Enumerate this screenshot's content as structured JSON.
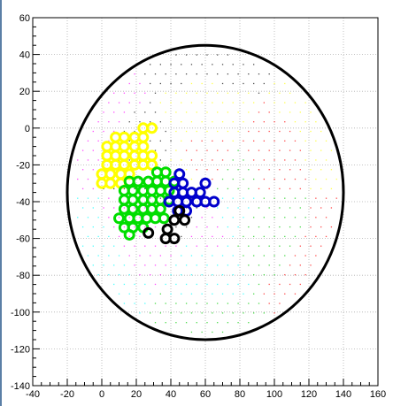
{
  "chart_data": {
    "type": "scatter",
    "title": "",
    "xlabel": "",
    "ylabel": "",
    "xlim": [
      -40,
      160
    ],
    "ylim": [
      -140,
      60
    ],
    "xticks": [
      -40,
      -20,
      0,
      20,
      40,
      60,
      80,
      100,
      120,
      140,
      160
    ],
    "yticks": [
      60,
      40,
      20,
      0,
      -20,
      -40,
      -60,
      -80,
      -100,
      -120,
      -140
    ],
    "grid": true,
    "circle": {
      "cx": 60,
      "cy": -35,
      "r": 80,
      "color": "#000000"
    },
    "background_dots": {
      "spacing": 6,
      "colors": [
        "#000000",
        "#ff00ff",
        "#00ffff",
        "#00cc00",
        "#ff0000",
        "#ffff00"
      ]
    },
    "series": [
      {
        "color": "#ffff00",
        "points": [
          [
            24,
            0
          ],
          [
            29,
            0
          ],
          [
            8,
            -5
          ],
          [
            13,
            -5
          ],
          [
            19,
            -5
          ],
          [
            24,
            -5
          ],
          [
            3,
            -10
          ],
          [
            8,
            -10
          ],
          [
            13,
            -10
          ],
          [
            19,
            -10
          ],
          [
            24,
            -10
          ],
          [
            3,
            -15
          ],
          [
            8,
            -15
          ],
          [
            13,
            -15
          ],
          [
            19,
            -15
          ],
          [
            24,
            -15
          ],
          [
            29,
            -15
          ],
          [
            3,
            -20
          ],
          [
            8,
            -20
          ],
          [
            13,
            -20
          ],
          [
            19,
            -20
          ],
          [
            24,
            -20
          ],
          [
            29,
            -20
          ],
          [
            0,
            -25
          ],
          [
            5,
            -25
          ],
          [
            11,
            -25
          ],
          [
            16,
            -25
          ],
          [
            0,
            -30
          ],
          [
            5,
            -30
          ],
          [
            11,
            -30
          ]
        ]
      },
      {
        "color": "#00dd00",
        "points": [
          [
            32,
            -24
          ],
          [
            37,
            -24
          ],
          [
            16,
            -29
          ],
          [
            21,
            -29
          ],
          [
            27,
            -29
          ],
          [
            32,
            -29
          ],
          [
            37,
            -29
          ],
          [
            42,
            -29
          ],
          [
            13,
            -34
          ],
          [
            18,
            -34
          ],
          [
            24,
            -34
          ],
          [
            29,
            -34
          ],
          [
            34,
            -34
          ],
          [
            39,
            -34
          ],
          [
            13,
            -39
          ],
          [
            18,
            -39
          ],
          [
            24,
            -39
          ],
          [
            29,
            -39
          ],
          [
            34,
            -39
          ],
          [
            39,
            -39
          ],
          [
            13,
            -44
          ],
          [
            18,
            -44
          ],
          [
            24,
            -44
          ],
          [
            29,
            -44
          ],
          [
            34,
            -44
          ],
          [
            10,
            -49
          ],
          [
            16,
            -49
          ],
          [
            21,
            -49
          ],
          [
            26,
            -49
          ],
          [
            31,
            -49
          ],
          [
            36,
            -49
          ],
          [
            13,
            -54
          ],
          [
            18,
            -54
          ],
          [
            24,
            -54
          ],
          [
            16,
            -58
          ]
        ]
      },
      {
        "color": "#0000cc",
        "points": [
          [
            45,
            -25
          ],
          [
            60,
            -30
          ],
          [
            42,
            -30
          ],
          [
            47,
            -30
          ],
          [
            42,
            -35
          ],
          [
            47,
            -35
          ],
          [
            52,
            -35
          ],
          [
            57,
            -35
          ],
          [
            39,
            -40
          ],
          [
            44,
            -40
          ],
          [
            49,
            -40
          ],
          [
            55,
            -40
          ],
          [
            60,
            -40
          ],
          [
            65,
            -40
          ],
          [
            44,
            -45
          ],
          [
            49,
            -45
          ]
        ]
      },
      {
        "color": "#000000",
        "points": [
          [
            45,
            -45
          ],
          [
            42,
            -50
          ],
          [
            48,
            -50
          ],
          [
            38,
            -55
          ],
          [
            27,
            -57
          ],
          [
            37,
            -60
          ],
          [
            42,
            -60
          ]
        ]
      }
    ]
  }
}
